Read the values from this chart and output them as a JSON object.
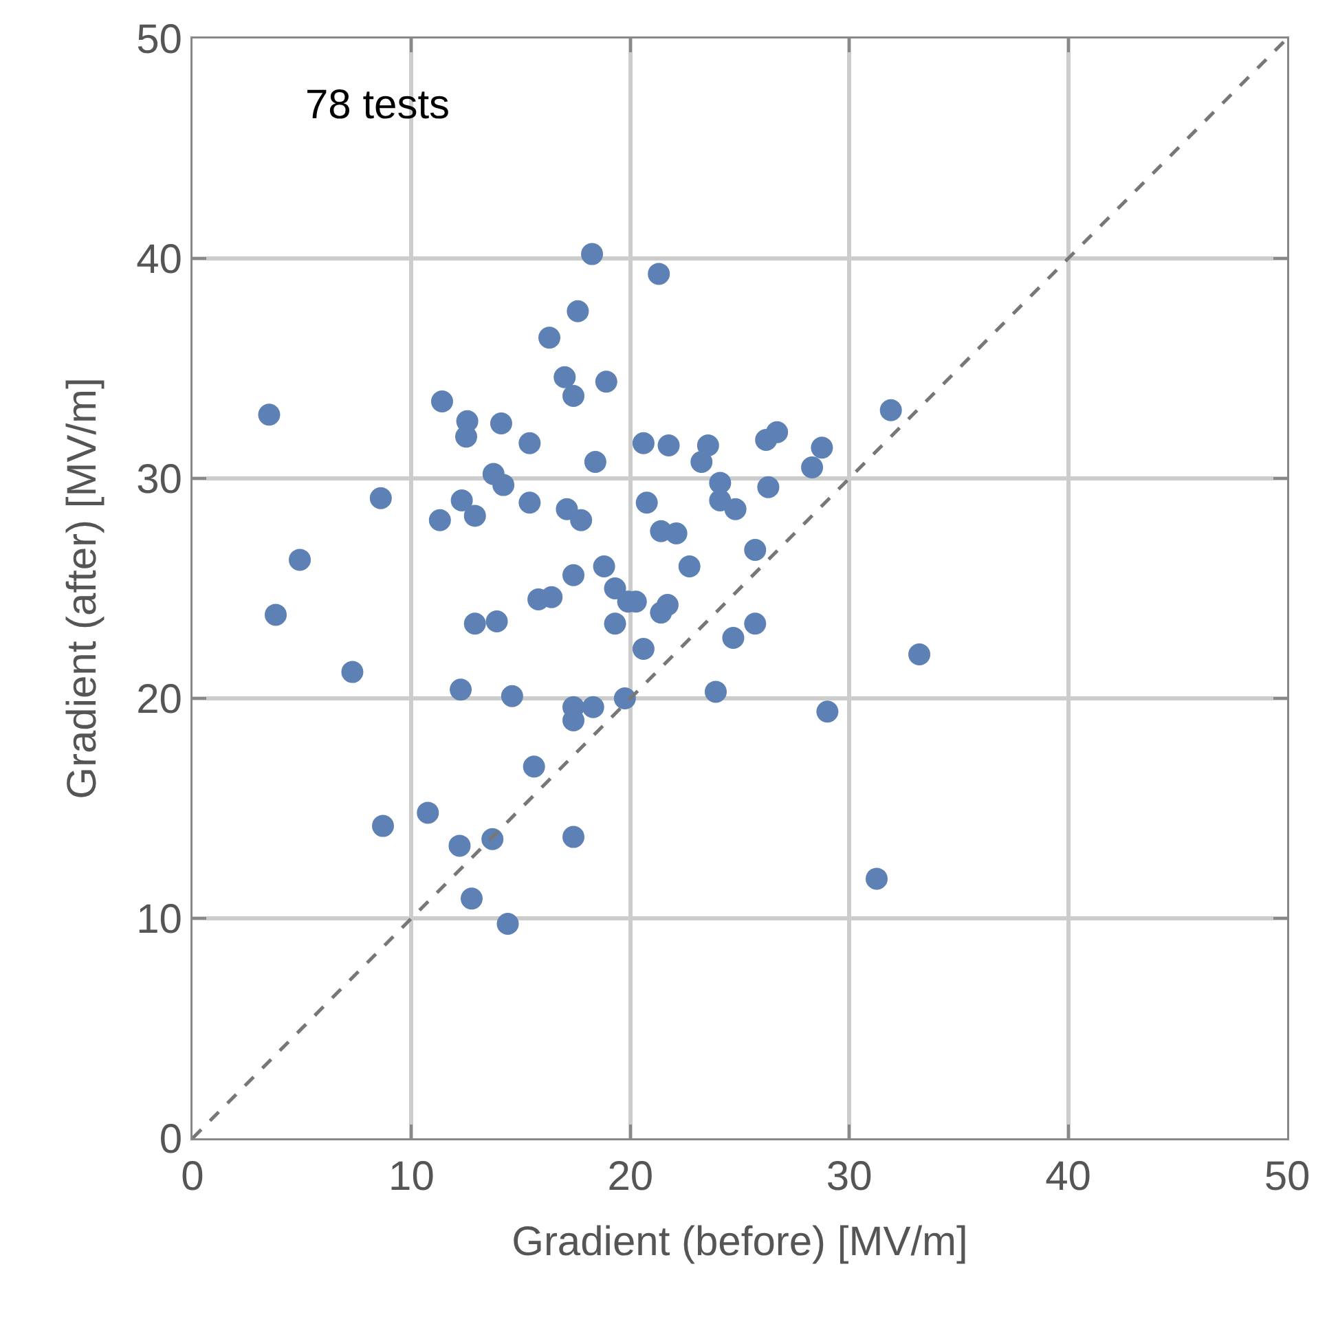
{
  "chart_data": {
    "type": "scatter",
    "xlabel": "Gradient (before) [MV/m]",
    "ylabel": "Gradient (after) [MV/m]",
    "annotations": [
      "78 tests"
    ],
    "xlim": [
      0,
      50
    ],
    "ylim": [
      0,
      50
    ],
    "xticks": [
      0,
      10,
      20,
      30,
      40,
      50
    ],
    "yticks": [
      0,
      10,
      20,
      30,
      40,
      50
    ],
    "grid": true,
    "marker": "circle",
    "series": [
      {
        "color": "#5e81b5",
        "x": [
          3.5,
          3.8,
          4.9,
          7.3,
          8.6,
          8.7,
          10.75,
          12.2,
          13.7,
          12.75,
          14.4,
          17.4,
          15.6,
          12.25,
          14.6,
          17.4,
          18.3,
          17.4,
          12.9,
          13.9,
          15.8,
          16.4,
          17.4,
          19.3,
          17.1,
          17.75,
          12.3,
          12.9,
          11.3,
          15.4,
          13.75,
          14.2,
          18.4,
          15.4,
          11.4,
          12.55,
          12.5,
          14.1,
          17.0,
          17.4,
          18.9,
          16.3,
          17.6,
          18.25,
          21.3,
          20.6,
          21.75,
          23.55,
          23.25,
          26.2,
          26.7,
          28.75,
          28.3,
          31.9,
          24.1,
          26.3,
          20.75,
          24.1,
          24.8,
          21.4,
          22.1,
          25.7,
          22.7,
          18.8,
          19.3,
          19.9,
          20.25,
          21.4,
          21.7,
          25.7,
          24.7,
          20.6,
          19.75,
          23.9,
          29.0,
          33.2,
          31.25
        ],
        "values": [
          32.9,
          23.8,
          26.3,
          21.2,
          29.1,
          14.2,
          14.8,
          13.3,
          13.6,
          10.9,
          9.75,
          13.7,
          16.9,
          20.4,
          20.1,
          19.6,
          19.6,
          19.0,
          23.4,
          23.5,
          24.5,
          24.6,
          25.6,
          23.4,
          28.6,
          28.1,
          29.0,
          28.3,
          28.1,
          28.9,
          30.2,
          29.7,
          30.75,
          31.6,
          33.5,
          32.6,
          31.9,
          32.5,
          34.6,
          33.75,
          34.4,
          36.4,
          37.6,
          40.2,
          39.3,
          31.6,
          31.5,
          31.5,
          30.75,
          31.75,
          32.1,
          31.4,
          30.5,
          33.1,
          29.8,
          29.6,
          28.9,
          29.0,
          28.6,
          27.6,
          27.5,
          26.75,
          26.0,
          26.0,
          25.0,
          24.4,
          24.4,
          23.9,
          24.25,
          23.4,
          22.75,
          22.25,
          20.0,
          20.3,
          19.4,
          22.0,
          11.8
        ]
      },
      {
        "type": "line",
        "color": "#777777",
        "line_style": "dashed",
        "marker": "none",
        "x": [
          0,
          50
        ],
        "values": [
          0,
          50
        ]
      }
    ]
  }
}
